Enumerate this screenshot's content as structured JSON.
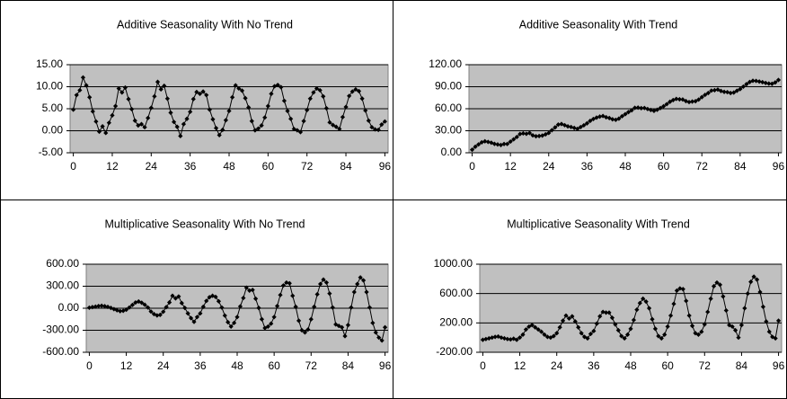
{
  "chart_data": [
    {
      "type": "line",
      "title": "Additive Seasonality With No Trend",
      "color": "#000000",
      "plot_background": "#c0c0c0",
      "grid": true,
      "x": [
        0,
        1,
        2,
        3,
        4,
        5,
        6,
        7,
        8,
        9,
        10,
        11,
        12,
        13,
        14,
        15,
        16,
        17,
        18,
        19,
        20,
        21,
        22,
        23,
        24,
        25,
        26,
        27,
        28,
        29,
        30,
        31,
        32,
        33,
        34,
        35,
        36,
        37,
        38,
        39,
        40,
        41,
        42,
        43,
        44,
        45,
        46,
        47,
        48,
        49,
        50,
        51,
        52,
        53,
        54,
        55,
        56,
        57,
        58,
        59,
        60,
        61,
        62,
        63,
        64,
        65,
        66,
        67,
        68,
        69,
        70,
        71,
        72,
        73,
        74,
        75,
        76,
        77,
        78,
        79,
        80,
        81,
        82,
        83,
        84,
        85,
        86,
        87,
        88,
        89,
        90,
        91,
        92,
        93,
        94,
        95,
        96
      ],
      "values": [
        4.8,
        8.1,
        9.2,
        12.1,
        10.3,
        7.6,
        4.4,
        2.1,
        -0.2,
        1.0,
        -0.5,
        1.8,
        3.5,
        5.6,
        9.6,
        8.7,
        9.8,
        7.2,
        4.9,
        2.3,
        1.2,
        1.5,
        0.8,
        2.9,
        5.2,
        7.8,
        11.1,
        9.4,
        10.2,
        7.3,
        4.1,
        2.0,
        0.9,
        -1.2,
        1.5,
        2.7,
        4.3,
        7.2,
        8.8,
        8.4,
        8.9,
        8.1,
        4.8,
        2.6,
        0.6,
        -1.0,
        0.2,
        2.4,
        4.5,
        7.6,
        10.3,
        9.6,
        9.1,
        7.4,
        5.3,
        2.2,
        0.1,
        0.5,
        1.2,
        3.0,
        5.6,
        8.4,
        10.1,
        10.4,
        9.9,
        6.8,
        4.5,
        2.7,
        0.4,
        0.1,
        -0.3,
        2.2,
        4.7,
        7.3,
        8.7,
        9.6,
        9.2,
        7.8,
        5.1,
        1.9,
        1.3,
        0.9,
        0.4,
        3.1,
        5.4,
        7.9,
        8.9,
        9.4,
        9.0,
        7.3,
        4.6,
        2.3,
        0.8,
        0.3,
        0.2,
        1.4,
        2.1
      ],
      "xlim": [
        -1,
        97
      ],
      "xticks": [
        0,
        12,
        24,
        36,
        48,
        60,
        72,
        84,
        96
      ],
      "ylim": [
        -5,
        15
      ],
      "yticks": [
        {
          "value": -5,
          "label": "-5.00"
        },
        {
          "value": 0,
          "label": "0.00"
        },
        {
          "value": 5,
          "label": "5.00"
        },
        {
          "value": 10,
          "label": "10.00"
        },
        {
          "value": 15,
          "label": "15.00"
        }
      ]
    },
    {
      "type": "line",
      "title": "Additive Seasonality With Trend",
      "color": "#000000",
      "plot_background": "#c0c0c0",
      "grid": true,
      "x": [
        0,
        1,
        2,
        3,
        4,
        5,
        6,
        7,
        8,
        9,
        10,
        11,
        12,
        13,
        14,
        15,
        16,
        17,
        18,
        19,
        20,
        21,
        22,
        23,
        24,
        25,
        26,
        27,
        28,
        29,
        30,
        31,
        32,
        33,
        34,
        35,
        36,
        37,
        38,
        39,
        40,
        41,
        42,
        43,
        44,
        45,
        46,
        47,
        48,
        49,
        50,
        51,
        52,
        53,
        54,
        55,
        56,
        57,
        58,
        59,
        60,
        61,
        62,
        63,
        64,
        65,
        66,
        67,
        68,
        69,
        70,
        71,
        72,
        73,
        74,
        75,
        76,
        77,
        78,
        79,
        80,
        81,
        82,
        83,
        84,
        85,
        86,
        87,
        88,
        89,
        90,
        91,
        92,
        93,
        94,
        95,
        96
      ],
      "values": [
        4.1,
        8.3,
        11.4,
        14.2,
        15.6,
        14.8,
        13.7,
        12.1,
        11.3,
        10.6,
        11.9,
        12.0,
        15.2,
        18.3,
        21.5,
        25.6,
        26.4,
        25.8,
        26.9,
        23.7,
        22.5,
        22.8,
        23.4,
        25.1,
        27.0,
        30.8,
        34.6,
        38.4,
        39.2,
        37.6,
        36.0,
        35.1,
        33.8,
        32.6,
        35.0,
        37.4,
        40.1,
        43.5,
        46.0,
        47.9,
        49.3,
        50.1,
        48.4,
        47.3,
        45.6,
        44.9,
        46.5,
        49.8,
        52.6,
        55.4,
        57.9,
        61.2,
        61.5,
        60.8,
        61.0,
        59.6,
        58.3,
        57.1,
        58.6,
        60.9,
        63.4,
        66.2,
        69.5,
        71.8,
        73.4,
        72.9,
        72.6,
        70.4,
        69.1,
        69.8,
        70.3,
        72.5,
        75.8,
        78.9,
        81.4,
        84.7,
        85.3,
        86.1,
        84.2,
        83.0,
        82.6,
        81.4,
        82.0,
        84.5,
        86.8,
        90.1,
        93.5,
        96.4,
        98.1,
        97.9,
        97.0,
        96.2,
        95.1,
        94.3,
        94.0,
        95.8,
        99.2
      ],
      "xlim": [
        -1,
        97
      ],
      "xticks": [
        0,
        12,
        24,
        36,
        48,
        60,
        72,
        84,
        96
      ],
      "ylim": [
        0,
        120
      ],
      "yticks": [
        {
          "value": 0,
          "label": "0.00"
        },
        {
          "value": 30,
          "label": "30.00"
        },
        {
          "value": 60,
          "label": "60.00"
        },
        {
          "value": 90,
          "label": "90.00"
        },
        {
          "value": 120,
          "label": "120.00"
        }
      ]
    },
    {
      "type": "line",
      "title": "Multiplicative Seasonality With No Trend",
      "color": "#000000",
      "plot_background": "#c0c0c0",
      "grid": true,
      "x": [
        0,
        1,
        2,
        3,
        4,
        5,
        6,
        7,
        8,
        9,
        10,
        11,
        12,
        13,
        14,
        15,
        16,
        17,
        18,
        19,
        20,
        21,
        22,
        23,
        24,
        25,
        26,
        27,
        28,
        29,
        30,
        31,
        32,
        33,
        34,
        35,
        36,
        37,
        38,
        39,
        40,
        41,
        42,
        43,
        44,
        45,
        46,
        47,
        48,
        49,
        50,
        51,
        52,
        53,
        54,
        55,
        56,
        57,
        58,
        59,
        60,
        61,
        62,
        63,
        64,
        65,
        66,
        67,
        68,
        69,
        70,
        71,
        72,
        73,
        74,
        75,
        76,
        77,
        78,
        79,
        80,
        81,
        82,
        83,
        84,
        85,
        86,
        87,
        88,
        89,
        90,
        91,
        92,
        93,
        94,
        95,
        96
      ],
      "values": [
        8,
        15,
        22,
        30,
        34,
        28,
        18,
        5,
        -12,
        -28,
        -40,
        -35,
        -20,
        10,
        45,
        78,
        92,
        75,
        48,
        10,
        -45,
        -80,
        -98,
        -90,
        -48,
        15,
        80,
        170,
        135,
        160,
        70,
        5,
        -70,
        -135,
        -185,
        -120,
        -70,
        20,
        100,
        150,
        170,
        155,
        95,
        10,
        -100,
        -190,
        -250,
        -200,
        -120,
        25,
        140,
        280,
        240,
        250,
        130,
        5,
        -150,
        -270,
        -250,
        -210,
        -120,
        30,
        180,
        310,
        350,
        340,
        170,
        20,
        -170,
        -300,
        -330,
        -290,
        -150,
        20,
        190,
        330,
        390,
        350,
        200,
        10,
        -220,
        -240,
        -260,
        -380,
        -230,
        10,
        220,
        330,
        420,
        380,
        220,
        10,
        -200,
        -330,
        -400,
        -440,
        -260
      ],
      "xlim": [
        -1,
        97
      ],
      "xticks": [
        0,
        12,
        24,
        36,
        48,
        60,
        72,
        84,
        96
      ],
      "ylim": [
        -600,
        600
      ],
      "yticks": [
        {
          "value": -600,
          "label": "-600.00"
        },
        {
          "value": -300,
          "label": "-300.00"
        },
        {
          "value": 0,
          "label": "0.00"
        },
        {
          "value": 300,
          "label": "300.00"
        },
        {
          "value": 600,
          "label": "600.00"
        }
      ]
    },
    {
      "type": "line",
      "title": "Multiplicative Seasonality With Trend",
      "color": "#000000",
      "plot_background": "#c0c0c0",
      "grid": true,
      "x": [
        0,
        1,
        2,
        3,
        4,
        5,
        6,
        7,
        8,
        9,
        10,
        11,
        12,
        13,
        14,
        15,
        16,
        17,
        18,
        19,
        20,
        21,
        22,
        23,
        24,
        25,
        26,
        27,
        28,
        29,
        30,
        31,
        32,
        33,
        34,
        35,
        36,
        37,
        38,
        39,
        40,
        41,
        42,
        43,
        44,
        45,
        46,
        47,
        48,
        49,
        50,
        51,
        52,
        53,
        54,
        55,
        56,
        57,
        58,
        59,
        60,
        61,
        62,
        63,
        64,
        65,
        66,
        67,
        68,
        69,
        70,
        71,
        72,
        73,
        74,
        75,
        76,
        77,
        78,
        79,
        80,
        81,
        82,
        83,
        84,
        85,
        86,
        87,
        88,
        89,
        90,
        91,
        92,
        93,
        94,
        95,
        96
      ],
      "values": [
        -30,
        -20,
        -10,
        0,
        10,
        15,
        0,
        -10,
        -20,
        -25,
        -15,
        -30,
        0,
        40,
        110,
        150,
        170,
        140,
        110,
        80,
        40,
        10,
        0,
        20,
        60,
        140,
        230,
        300,
        260,
        290,
        220,
        140,
        60,
        10,
        -10,
        50,
        90,
        190,
        290,
        350,
        340,
        340,
        270,
        180,
        100,
        20,
        -10,
        40,
        120,
        240,
        380,
        470,
        530,
        490,
        400,
        250,
        120,
        20,
        -10,
        40,
        150,
        300,
        460,
        640,
        670,
        660,
        500,
        300,
        160,
        60,
        40,
        80,
        180,
        350,
        530,
        700,
        750,
        720,
        560,
        370,
        170,
        150,
        100,
        0,
        170,
        400,
        600,
        760,
        830,
        790,
        620,
        420,
        220,
        80,
        10,
        -10,
        230
      ],
      "xlim": [
        -1,
        97
      ],
      "xticks": [
        0,
        12,
        24,
        36,
        48,
        60,
        72,
        84,
        96
      ],
      "ylim": [
        -200,
        1000
      ],
      "yticks": [
        {
          "value": -200,
          "label": "-200.00"
        },
        {
          "value": 200,
          "label": "200.00"
        },
        {
          "value": 600,
          "label": "600.00"
        },
        {
          "value": 1000,
          "label": "1000.00"
        }
      ]
    }
  ]
}
